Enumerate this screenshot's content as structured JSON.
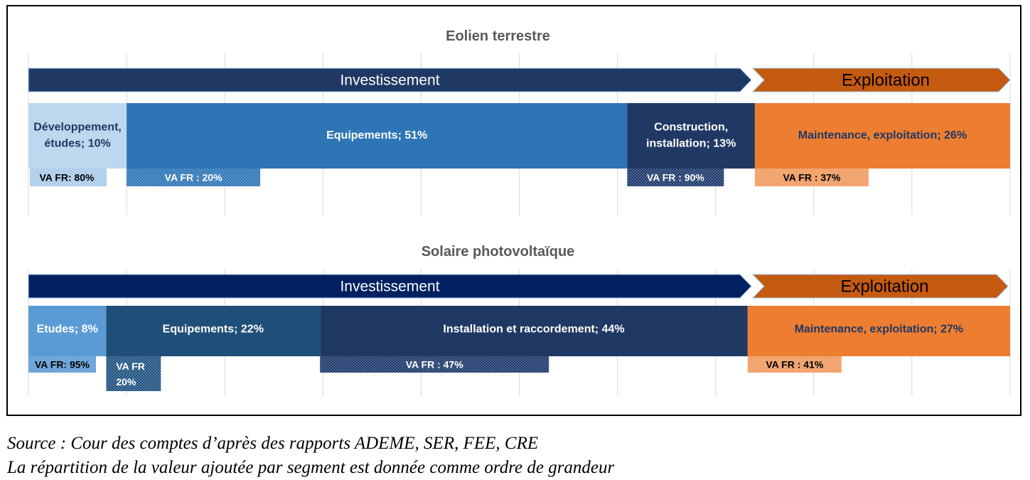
{
  "chart_data": [
    {
      "type": "bar",
      "title": "Eolien terrestre",
      "phases": [
        {
          "label": "Investissement",
          "color": "#203864"
        },
        {
          "label": "Exploitation",
          "color": "#c55a11"
        }
      ],
      "segments": [
        {
          "label": "Développement, études; 10%",
          "name": "Développement, études",
          "value": 10,
          "va_fr_label": "VA FR: 80%",
          "va_fr": 80,
          "color": "#bdd7ee",
          "text_color": "#203864"
        },
        {
          "label": "Equipements; 51%",
          "name": "Equipements",
          "value": 51,
          "va_fr_label": "VA FR : 20%",
          "va_fr": 20,
          "color": "#2e75b6",
          "text_color": "#ffffff"
        },
        {
          "label": "Construction, installation; 13%",
          "name": "Construction, installation",
          "value": 13,
          "va_fr_label": "VA FR : 90%",
          "va_fr": 90,
          "color": "#203864",
          "text_color": "#ffffff"
        },
        {
          "label": "Maintenance, exploitation; 26%",
          "name": "Maintenance, exploitation",
          "value": 26,
          "va_fr_label": "VA FR : 37%",
          "va_fr": 37,
          "color": "#ed7d31",
          "text_color": "#203864"
        }
      ]
    },
    {
      "type": "bar",
      "title": "Solaire photovoltaïque",
      "phases": [
        {
          "label": "Investissement",
          "color": "#002060"
        },
        {
          "label": "Exploitation",
          "color": "#c55a11"
        }
      ],
      "segments": [
        {
          "label": "Etudes; 8%",
          "name": "Etudes",
          "value": 8,
          "va_fr_label": "VA FR: 95%",
          "va_fr": 95,
          "color": "#5b9bd5",
          "text_color": "#ffffff"
        },
        {
          "label": "Equipements; 22%",
          "name": "Equipements",
          "value": 22,
          "va_fr_label": "VA FR 20%",
          "va_fr": 20,
          "color": "#1f4e79",
          "text_color": "#ffffff"
        },
        {
          "label": "Installation et raccordement; 44%",
          "name": "Installation et raccordement",
          "value": 44,
          "va_fr_label": "VA FR : 47%",
          "va_fr": 47,
          "color": "#203864",
          "text_color": "#ffffff"
        },
        {
          "label": "Maintenance, exploitation; 27%",
          "name": "Maintenance, exploitation",
          "value": 27,
          "va_fr_label": "VA FR : 41%",
          "va_fr": 41,
          "color": "#ed7d31",
          "text_color": "#203864"
        }
      ]
    }
  ],
  "source": "Source : Cour des comptes d’après des rapports ADEME, SER, FEE, CRE",
  "note": "La répartition de la valeur ajoutée par segment est donnée comme ordre de grandeur"
}
